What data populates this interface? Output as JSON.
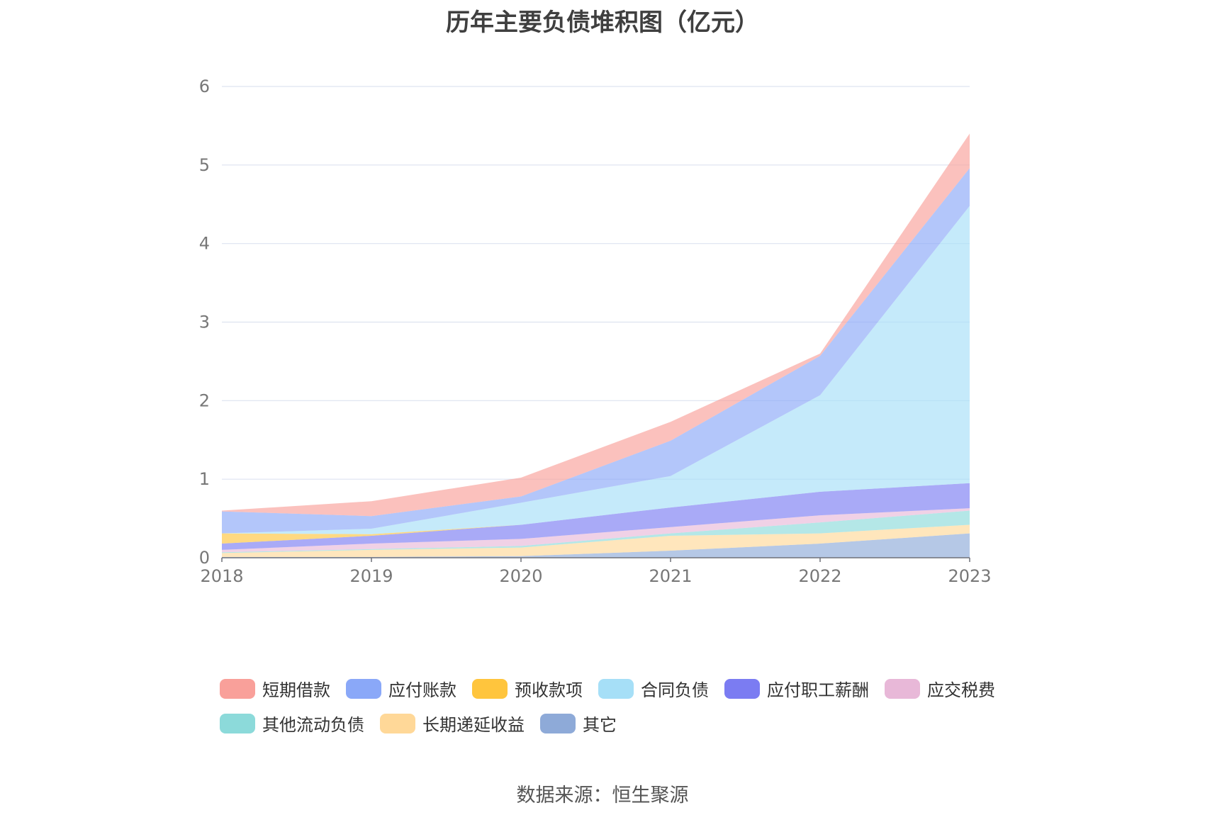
{
  "chart_data": {
    "type": "area",
    "stacked": true,
    "title": "历年主要负债堆积图（亿元）",
    "xlabel": "",
    "ylabel": "",
    "categories": [
      "2018",
      "2019",
      "2020",
      "2021",
      "2022",
      "2023"
    ],
    "ylim": [
      0,
      6
    ],
    "yticks": [
      "0",
      "1",
      "2",
      "3",
      "4",
      "5",
      "6"
    ],
    "grid": true,
    "legend_position": "bottom",
    "series": [
      {
        "name": "其它",
        "color": "#8eaad8",
        "values": [
          0.01,
          0.01,
          0.02,
          0.09,
          0.18,
          0.31
        ]
      },
      {
        "name": "长期递延收益",
        "color": "#ffd898",
        "values": [
          0.05,
          0.09,
          0.11,
          0.19,
          0.13,
          0.11
        ]
      },
      {
        "name": "其他流动负债",
        "color": "#8cdada",
        "values": [
          0.01,
          0.01,
          0.02,
          0.03,
          0.14,
          0.18
        ]
      },
      {
        "name": "应交税费",
        "color": "#e8b8d8",
        "values": [
          0.03,
          0.07,
          0.09,
          0.08,
          0.09,
          0.03
        ]
      },
      {
        "name": "应付职工薪酬",
        "color": "#7b7cf2",
        "values": [
          0.08,
          0.1,
          0.18,
          0.25,
          0.3,
          0.32
        ]
      },
      {
        "name": "预收款项",
        "color": "#ffc53d",
        "values": [
          0.13,
          0.02,
          0.0,
          0.0,
          0.0,
          0.0
        ]
      },
      {
        "name": "合同负债",
        "color": "#a6dff7",
        "values": [
          0.0,
          0.07,
          0.28,
          0.4,
          1.23,
          3.53
        ]
      },
      {
        "name": "应付账款",
        "color": "#8aa8f8",
        "values": [
          0.28,
          0.16,
          0.08,
          0.45,
          0.5,
          0.48
        ]
      },
      {
        "name": "短期借款",
        "color": "#f9a09a",
        "values": [
          0.01,
          0.19,
          0.24,
          0.24,
          0.03,
          0.44
        ]
      }
    ]
  },
  "legend_order": [
    "短期借款",
    "应付账款",
    "预收款项",
    "合同负债",
    "应付职工薪酬",
    "应交税费",
    "其他流动负债",
    "长期递延收益",
    "其它"
  ],
  "source": "数据来源：恒生聚源"
}
